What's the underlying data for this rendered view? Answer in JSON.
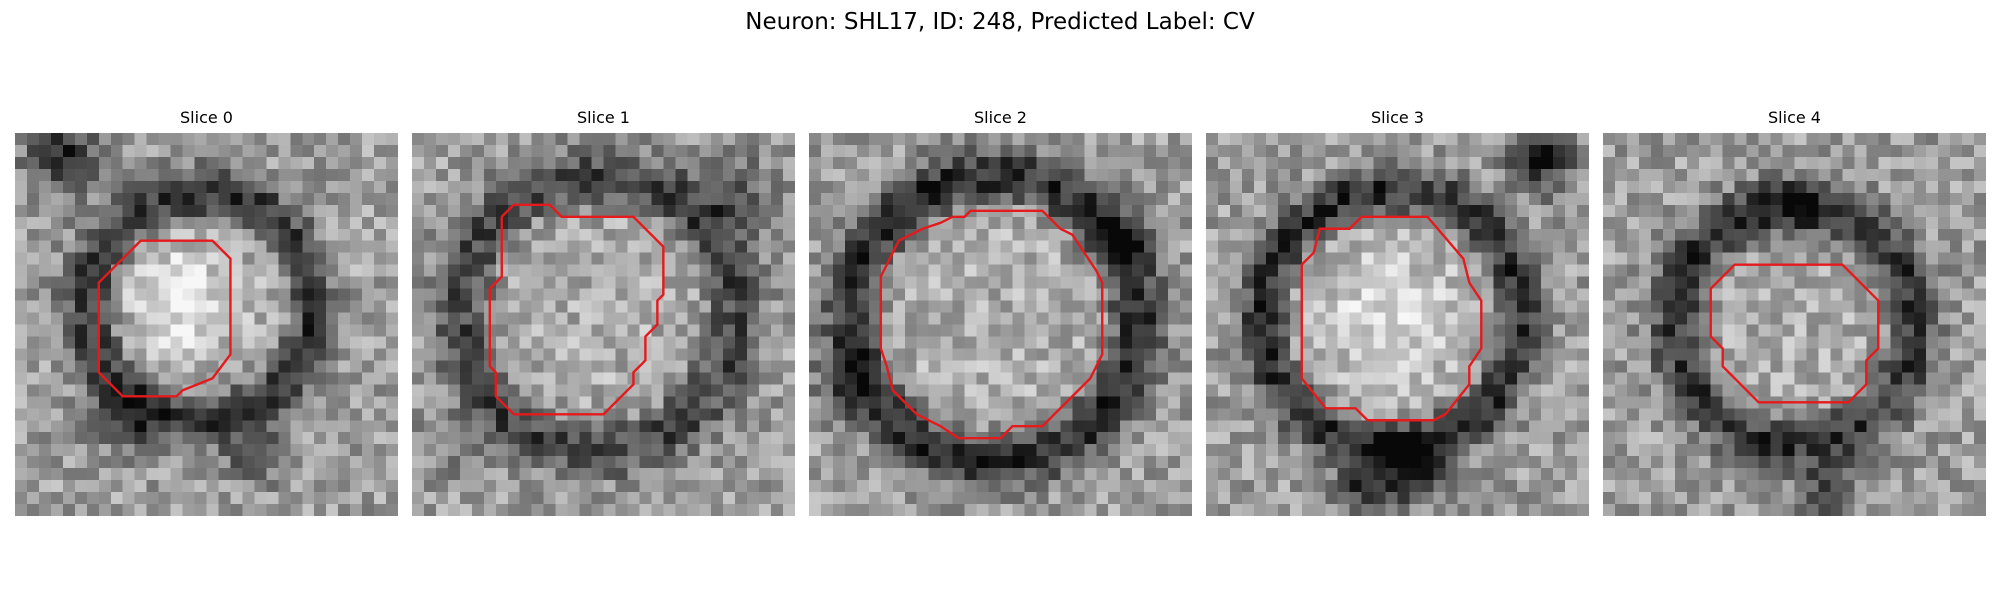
{
  "figure": {
    "title": "Neuron: SHL17, ID: 248, Predicted Label: CV"
  },
  "grid_size": 32,
  "outline_color": "#e41a1c",
  "slices": [
    {
      "title": "Slice 0",
      "seed": 11,
      "ring": {
        "cx": 15.5,
        "cy": 14.5,
        "r": 9.5,
        "depth": 0.42,
        "width": 2.2
      },
      "blobs": [
        {
          "x": 4,
          "y": 2,
          "s": 3.0,
          "a": -0.45
        },
        {
          "x": 9,
          "y": 24,
          "s": 3.0,
          "a": -0.25
        },
        {
          "x": 20,
          "y": 27,
          "s": 2.5,
          "a": -0.25
        },
        {
          "x": 14,
          "y": 14,
          "s": 4.0,
          "a": 0.25
        },
        {
          "x": 27,
          "y": 10,
          "s": 3.0,
          "a": 0.15
        }
      ],
      "outline": [
        [
          12,
          9
        ],
        [
          16.5,
          9
        ],
        [
          18,
          10.5
        ],
        [
          18,
          18.5
        ],
        [
          16.5,
          20.5
        ],
        [
          14,
          21.5
        ],
        [
          13.5,
          22
        ],
        [
          9,
          22
        ],
        [
          7,
          20
        ],
        [
          7,
          12.5
        ],
        [
          9,
          10.5
        ],
        [
          10.5,
          9
        ]
      ]
    },
    {
      "title": "Slice 1",
      "seed": 23,
      "ring": {
        "cx": 15.5,
        "cy": 15.0,
        "r": 11.5,
        "depth": 0.35,
        "width": 2.4
      },
      "blobs": [
        {
          "x": 27,
          "y": 5,
          "s": 3.0,
          "a": -0.3
        },
        {
          "x": 4,
          "y": 26,
          "s": 3.0,
          "a": -0.15
        }
      ],
      "outline": [
        [
          8.5,
          6
        ],
        [
          11.5,
          6
        ],
        [
          12.5,
          7
        ],
        [
          18.5,
          7
        ],
        [
          21,
          9.5
        ],
        [
          21,
          13.5
        ],
        [
          20.5,
          14
        ],
        [
          20.5,
          16
        ],
        [
          19.5,
          17
        ],
        [
          19.5,
          19
        ],
        [
          18.5,
          20
        ],
        [
          18.5,
          21
        ],
        [
          16,
          23.5
        ],
        [
          8.5,
          23.5
        ],
        [
          7,
          22
        ],
        [
          7,
          20
        ],
        [
          6.5,
          19.5
        ],
        [
          6.5,
          13
        ],
        [
          7.5,
          12
        ],
        [
          7.5,
          7
        ]
      ]
    },
    {
      "title": "Slice 2",
      "seed": 37,
      "ring": {
        "cx": 15.5,
        "cy": 15.5,
        "r": 12.0,
        "depth": 0.45,
        "width": 2.3
      },
      "blobs": [
        {
          "x": 26,
          "y": 9,
          "s": 2.5,
          "a": -0.35
        },
        {
          "x": 3,
          "y": 21,
          "s": 3.0,
          "a": -0.25
        }
      ],
      "outline": [
        [
          12,
          7
        ],
        [
          13,
          7
        ],
        [
          13.5,
          6.5
        ],
        [
          19.5,
          6.5
        ],
        [
          21,
          8
        ],
        [
          22,
          8.5
        ],
        [
          24,
          11.5
        ],
        [
          24.5,
          12.5
        ],
        [
          24.5,
          18.5
        ],
        [
          23.5,
          20.5
        ],
        [
          21,
          23
        ],
        [
          19.5,
          24.5
        ],
        [
          17,
          24.5
        ],
        [
          16,
          25.5
        ],
        [
          12.5,
          25.5
        ],
        [
          11,
          24.5
        ],
        [
          9,
          23.5
        ],
        [
          7,
          21.5
        ],
        [
          6.5,
          19.5
        ],
        [
          6,
          18
        ],
        [
          6,
          12
        ],
        [
          7,
          10
        ],
        [
          7.5,
          9
        ],
        [
          8.5,
          8.5
        ],
        [
          9.5,
          8
        ],
        [
          11,
          7.5
        ]
      ]
    },
    {
      "title": "Slice 3",
      "seed": 51,
      "ring": {
        "cx": 15.5,
        "cy": 15.5,
        "r": 10.8,
        "depth": 0.45,
        "width": 2.0
      },
      "blobs": [
        {
          "x": 28,
          "y": 2,
          "s": 2.8,
          "a": -0.5
        },
        {
          "x": 17,
          "y": 28,
          "s": 3.0,
          "a": -0.45
        },
        {
          "x": 13,
          "y": 30,
          "s": 2.5,
          "a": -0.35
        },
        {
          "x": 15,
          "y": 15,
          "s": 5.0,
          "a": 0.2
        }
      ],
      "outline": [
        [
          9.5,
          8
        ],
        [
          12,
          8
        ],
        [
          13,
          7
        ],
        [
          18.5,
          7
        ],
        [
          21.5,
          10.5
        ],
        [
          22,
          12.5
        ],
        [
          23,
          14
        ],
        [
          23,
          18
        ],
        [
          22,
          19.5
        ],
        [
          22,
          21
        ],
        [
          20,
          23.5
        ],
        [
          19,
          24
        ],
        [
          13.5,
          24
        ],
        [
          12.5,
          23
        ],
        [
          10,
          23
        ],
        [
          8,
          20.5
        ],
        [
          8,
          11
        ],
        [
          9,
          10
        ]
      ]
    },
    {
      "title": "Slice 4",
      "seed": 67,
      "ring": {
        "cx": 16.0,
        "cy": 16.0,
        "r": 10.0,
        "depth": 0.42,
        "width": 2.2
      },
      "blobs": [
        {
          "x": 19,
          "y": 30,
          "s": 2.5,
          "a": -0.35
        },
        {
          "x": 16,
          "y": 7,
          "s": 3.0,
          "a": -0.2
        }
      ],
      "outline": [
        [
          11,
          11
        ],
        [
          20,
          11
        ],
        [
          23,
          14
        ],
        [
          23,
          18
        ],
        [
          22,
          19
        ],
        [
          22,
          21
        ],
        [
          21,
          22
        ],
        [
          20.5,
          22.5
        ],
        [
          13,
          22.5
        ],
        [
          12,
          21.5
        ],
        [
          10,
          19.5
        ],
        [
          10,
          18
        ],
        [
          9,
          17
        ],
        [
          9,
          13
        ]
      ]
    }
  ]
}
